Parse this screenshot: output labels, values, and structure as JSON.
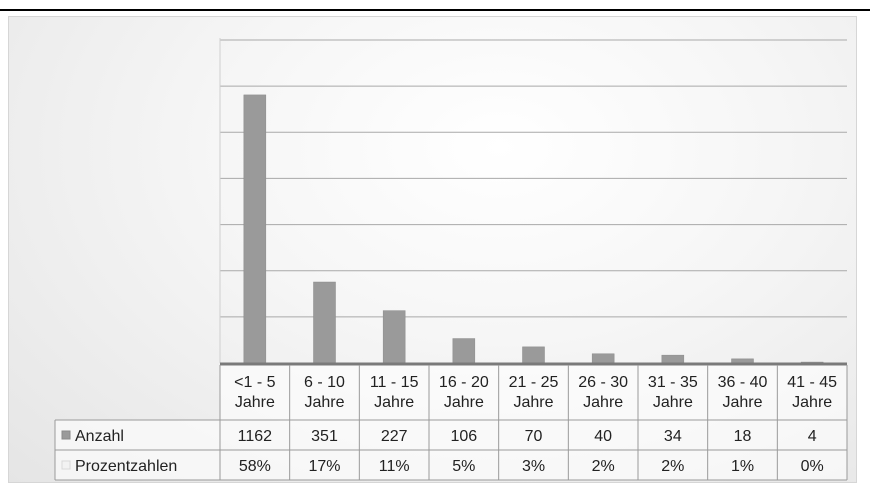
{
  "chart_data": {
    "type": "bar",
    "categories": [
      [
        "<1 - 5",
        "Jahre"
      ],
      [
        "6 - 10",
        "Jahre"
      ],
      [
        "11 - 15",
        "Jahre"
      ],
      [
        "16 - 20",
        "Jahre"
      ],
      [
        "21 - 25",
        "Jahre"
      ],
      [
        "26 - 30",
        "Jahre"
      ],
      [
        "31 - 35",
        "Jahre"
      ],
      [
        "36 - 40",
        "Jahre"
      ],
      [
        "41 - 45",
        "Jahre"
      ]
    ],
    "series": [
      {
        "name": "Anzahl",
        "values": [
          1162,
          351,
          227,
          106,
          70,
          40,
          34,
          18,
          4
        ],
        "color": "#9a9a9a",
        "plotted": true
      },
      {
        "name": "Prozentzahlen",
        "values": [
          0.58,
          0.17,
          0.11,
          0.05,
          0.03,
          0.02,
          0.02,
          0.01,
          0.0
        ],
        "labels": [
          "58%",
          "17%",
          "11%",
          "5%",
          "3%",
          "2%",
          "2%",
          "1%",
          "0%"
        ],
        "color": "#f2f2f2",
        "plotted": false
      }
    ],
    "ylim": [
      0,
      1400
    ],
    "grid": true,
    "legend": "data-table"
  }
}
